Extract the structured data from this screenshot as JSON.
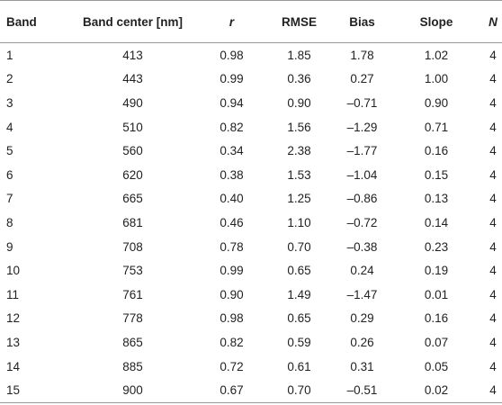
{
  "table": {
    "header": [
      "Band",
      "Band center [nm]",
      "r",
      "RMSE",
      "Bias",
      "Slope",
      "N"
    ],
    "rows": [
      [
        "1",
        "413",
        "0.98",
        "1.85",
        "1.78",
        "1.02",
        "4"
      ],
      [
        "2",
        "443",
        "0.99",
        "0.36",
        "0.27",
        "1.00",
        "4"
      ],
      [
        "3",
        "490",
        "0.94",
        "0.90",
        "–0.71",
        "0.90",
        "4"
      ],
      [
        "4",
        "510",
        "0.82",
        "1.56",
        "–1.29",
        "0.71",
        "4"
      ],
      [
        "5",
        "560",
        "0.34",
        "2.38",
        "–1.77",
        "0.16",
        "4"
      ],
      [
        "6",
        "620",
        "0.38",
        "1.53",
        "–1.04",
        "0.15",
        "4"
      ],
      [
        "7",
        "665",
        "0.40",
        "1.25",
        "–0.86",
        "0.13",
        "4"
      ],
      [
        "8",
        "681",
        "0.46",
        "1.10",
        "–0.72",
        "0.14",
        "4"
      ],
      [
        "9",
        "708",
        "0.78",
        "0.70",
        "–0.38",
        "0.23",
        "4"
      ],
      [
        "10",
        "753",
        "0.99",
        "0.65",
        "0.24",
        "0.19",
        "4"
      ],
      [
        "11",
        "761",
        "0.90",
        "1.49",
        "–1.47",
        "0.01",
        "4"
      ],
      [
        "12",
        "778",
        "0.98",
        "0.65",
        "0.29",
        "0.16",
        "4"
      ],
      [
        "13",
        "865",
        "0.82",
        "0.59",
        "0.26",
        "0.07",
        "4"
      ],
      [
        "14",
        "885",
        "0.72",
        "0.61",
        "0.31",
        "0.05",
        "4"
      ],
      [
        "15",
        "900",
        "0.67",
        "0.70",
        "–0.51",
        "0.02",
        "4"
      ]
    ]
  }
}
